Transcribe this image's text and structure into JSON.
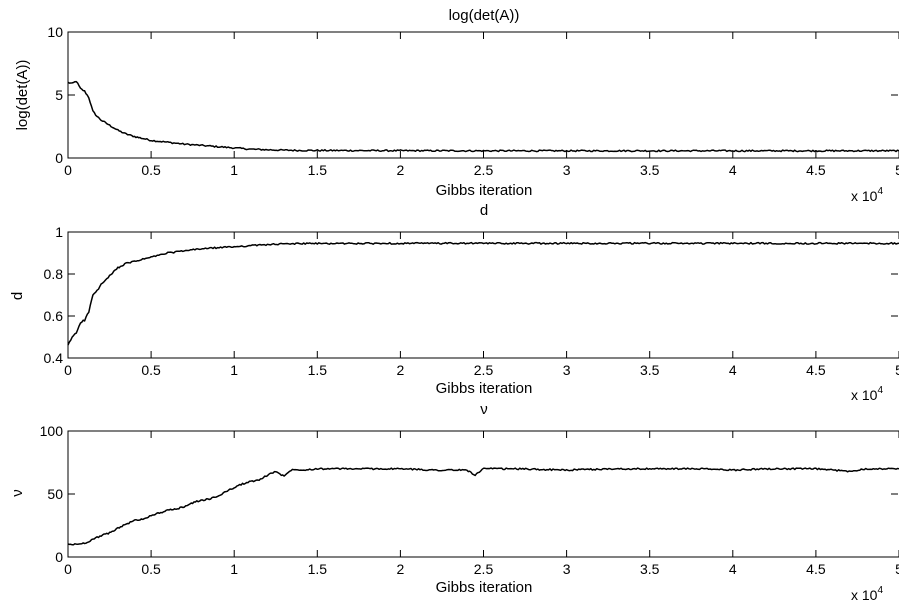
{
  "chart_data": [
    {
      "type": "line",
      "title": "log(det(A))",
      "xlabel": "Gibbs iteration",
      "ylabel": "log(det(A))",
      "x_multiplier": "x 10",
      "x_multiplier_exp": "4",
      "xlim": [
        0,
        50000
      ],
      "ylim": [
        0,
        10
      ],
      "xticks": [
        0,
        5000,
        10000,
        15000,
        20000,
        25000,
        30000,
        35000,
        40000,
        45000,
        50000
      ],
      "xtick_labels": [
        "0",
        "0.5",
        "1",
        "1.5",
        "2",
        "2.5",
        "3",
        "3.5",
        "4",
        "4.5",
        "5"
      ],
      "yticks": [
        0,
        5,
        10
      ],
      "ytick_labels": [
        "0",
        "5",
        "10"
      ],
      "grid": false,
      "series": [
        {
          "x": [
            0,
            250,
            500,
            750,
            1000,
            1250,
            1500,
            1750,
            2000,
            2500,
            3000,
            3500,
            4000,
            4500,
            5000,
            6000,
            7000,
            8000,
            9000,
            10000,
            11000,
            12000,
            13000,
            14000,
            15000,
            20000,
            25000,
            30000,
            35000,
            40000,
            45000,
            50000
          ],
          "y": [
            6.0,
            5.9,
            6.1,
            5.5,
            5.3,
            4.8,
            3.7,
            3.3,
            3.0,
            2.6,
            2.2,
            1.9,
            1.7,
            1.55,
            1.4,
            1.25,
            1.1,
            1.0,
            0.9,
            0.8,
            0.7,
            0.65,
            0.62,
            0.6,
            0.6,
            0.58,
            0.57,
            0.57,
            0.57,
            0.57,
            0.57,
            0.57
          ]
        }
      ]
    },
    {
      "type": "line",
      "title": "d",
      "xlabel": "Gibbs iteration",
      "ylabel": "d",
      "x_multiplier": "x 10",
      "x_multiplier_exp": "4",
      "xlim": [
        0,
        50000
      ],
      "ylim": [
        0.4,
        1.0
      ],
      "xticks": [
        0,
        5000,
        10000,
        15000,
        20000,
        25000,
        30000,
        35000,
        40000,
        45000,
        50000
      ],
      "xtick_labels": [
        "0",
        "0.5",
        "1",
        "1.5",
        "2",
        "2.5",
        "3",
        "3.5",
        "4",
        "4.5",
        "5"
      ],
      "yticks": [
        0.4,
        0.6,
        0.8,
        1.0
      ],
      "ytick_labels": [
        "0.4",
        "0.6",
        "0.8",
        "1"
      ],
      "grid": false,
      "series": [
        {
          "x": [
            0,
            250,
            500,
            750,
            1000,
            1250,
            1500,
            1750,
            2000,
            2500,
            3000,
            3500,
            4000,
            4500,
            5000,
            6000,
            7000,
            8000,
            9000,
            10000,
            11000,
            12000,
            13000,
            14000,
            15000,
            20000,
            25000,
            30000,
            35000,
            40000,
            45000,
            50000
          ],
          "y": [
            0.46,
            0.5,
            0.52,
            0.57,
            0.58,
            0.62,
            0.7,
            0.72,
            0.75,
            0.79,
            0.83,
            0.85,
            0.86,
            0.87,
            0.88,
            0.9,
            0.91,
            0.92,
            0.925,
            0.93,
            0.935,
            0.94,
            0.943,
            0.945,
            0.945,
            0.946,
            0.946,
            0.946,
            0.946,
            0.946,
            0.946,
            0.946
          ]
        }
      ]
    },
    {
      "type": "line",
      "title": "ν",
      "xlabel": "Gibbs iteration",
      "ylabel": "ν",
      "x_multiplier": "x 10",
      "x_multiplier_exp": "4",
      "xlim": [
        0,
        50000
      ],
      "ylim": [
        0,
        100
      ],
      "xticks": [
        0,
        5000,
        10000,
        15000,
        20000,
        25000,
        30000,
        35000,
        40000,
        45000,
        50000
      ],
      "xtick_labels": [
        "0",
        "0.5",
        "1",
        "1.5",
        "2",
        "2.5",
        "3",
        "3.5",
        "4",
        "4.5",
        "5"
      ],
      "yticks": [
        0,
        50,
        100
      ],
      "ytick_labels": [
        "0",
        "50",
        "100"
      ],
      "grid": false,
      "series": [
        {
          "x": [
            0,
            500,
            1000,
            1500,
            2000,
            2500,
            3000,
            3500,
            4000,
            4500,
            5000,
            5500,
            6000,
            6500,
            7000,
            7500,
            8000,
            8500,
            9000,
            9500,
            10000,
            10500,
            11000,
            11500,
            12000,
            12500,
            13000,
            13500,
            14000,
            15000,
            17000,
            20000,
            22000,
            24000,
            24500,
            25000,
            27000,
            30000,
            33000,
            35000,
            38000,
            40000,
            42000,
            45000,
            47000,
            48000,
            50000
          ],
          "y": [
            10,
            10,
            11,
            14,
            17,
            19,
            23,
            26,
            29,
            30,
            33,
            35,
            37,
            38,
            40,
            43,
            45,
            46,
            48,
            52,
            55,
            58,
            60,
            61,
            65,
            68,
            64,
            70,
            69,
            70,
            70,
            70,
            69,
            69,
            65,
            70,
            70,
            69,
            70,
            70,
            70,
            69,
            70,
            70,
            68,
            70,
            70
          ]
        }
      ]
    }
  ]
}
